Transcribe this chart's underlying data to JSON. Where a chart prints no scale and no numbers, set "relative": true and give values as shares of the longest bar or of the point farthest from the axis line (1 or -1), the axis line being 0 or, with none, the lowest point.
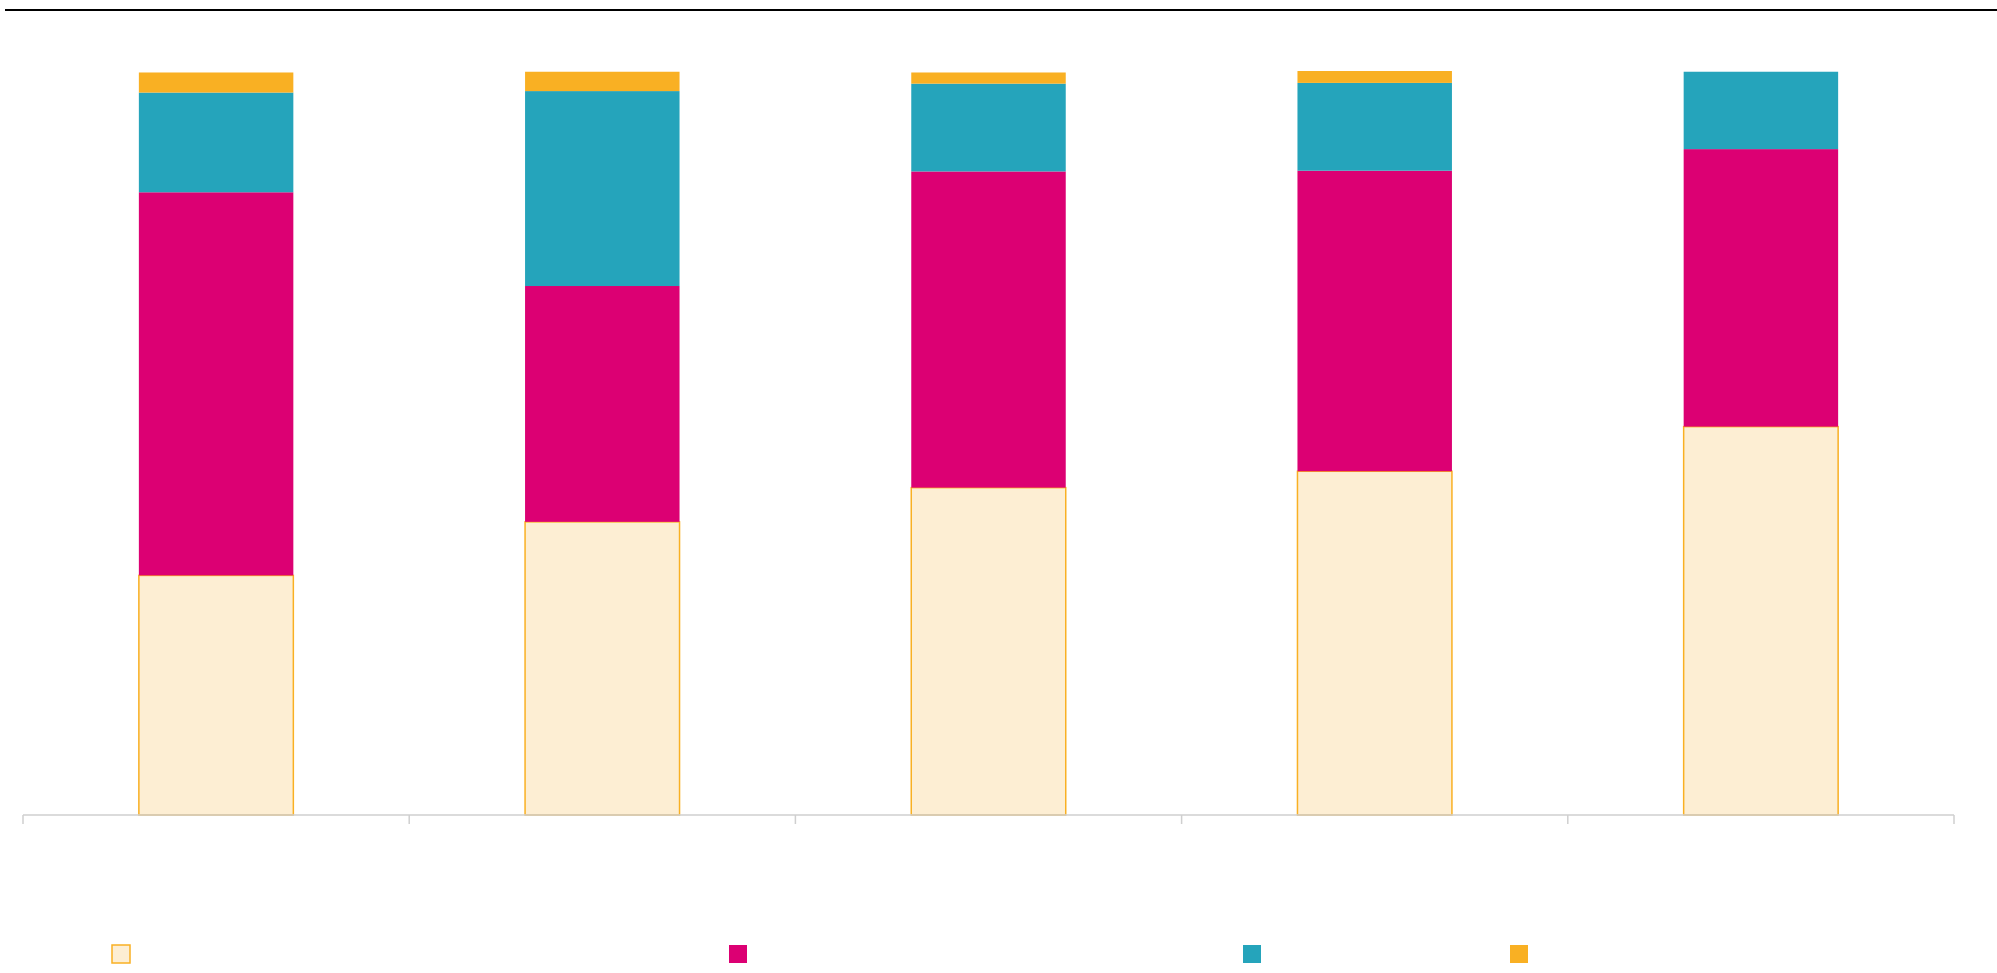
{
  "chart_data": {
    "type": "bar",
    "stacked": true,
    "relative": true,
    "categories": [
      null,
      null,
      null,
      null,
      null
    ],
    "series": [
      {
        "color": "#fdeed3",
        "values": [
          0.322,
          0.394,
          0.44,
          0.462,
          0.522
        ]
      },
      {
        "color": "#dc0073",
        "values": [
          0.515,
          0.317,
          0.425,
          0.404,
          0.373
        ]
      },
      {
        "color": "#25a4bb",
        "values": [
          0.134,
          0.262,
          0.118,
          0.118,
          0.104
        ]
      },
      {
        "color": "#f9b023",
        "values": [
          0.027,
          0.026,
          0.015,
          0.016,
          null
        ]
      }
    ]
  }
}
